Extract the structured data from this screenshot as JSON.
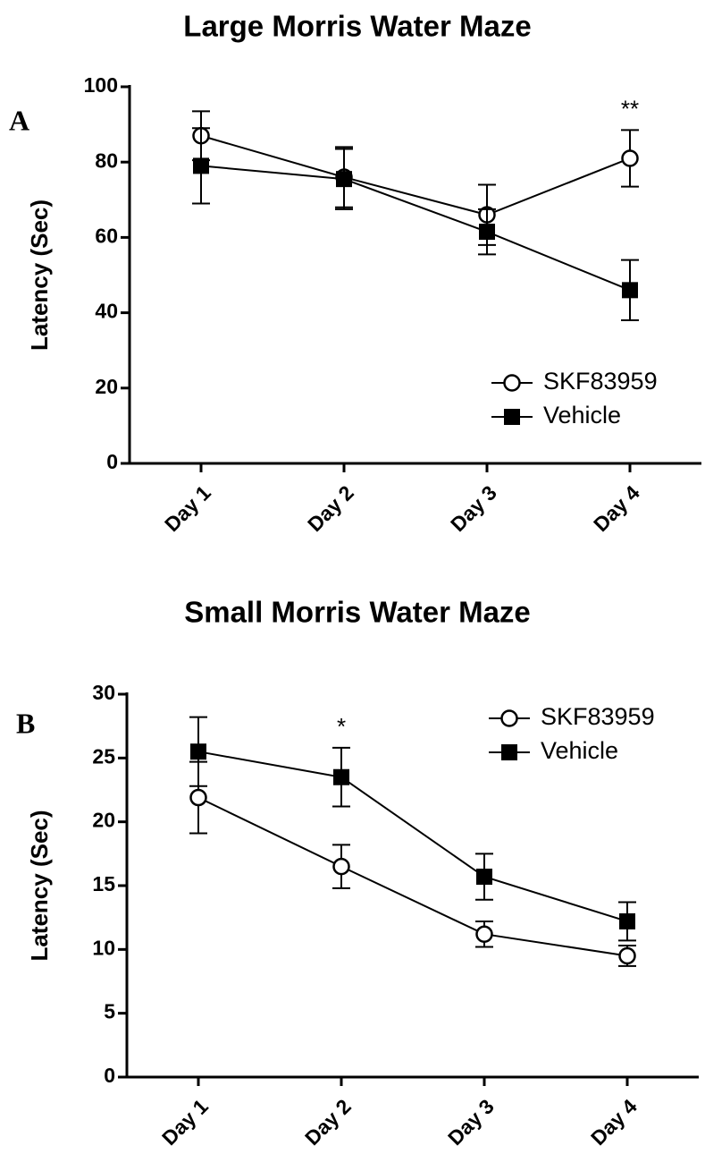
{
  "chart_data": [
    {
      "type": "line",
      "panel": "A",
      "title": "Large Morris Water Maze",
      "ylabel": "Latency (Sec)",
      "categories": [
        "Day 1",
        "Day 2",
        "Day 3",
        "Day 4"
      ],
      "ylim": [
        0,
        100
      ],
      "yticks": [
        0,
        20,
        40,
        60,
        80,
        100
      ],
      "legend": "lower right",
      "series": [
        {
          "name": "SKF83959",
          "color": "#000000",
          "marker": "circle-open",
          "values": [
            87,
            76,
            66,
            81
          ],
          "errors": [
            6.5,
            8,
            8,
            7.5
          ]
        },
        {
          "name": "Vehicle",
          "color": "#000000",
          "marker": "square",
          "values": [
            79,
            75.5,
            61.5,
            46
          ],
          "errors": [
            10,
            8,
            6,
            8
          ]
        }
      ],
      "annotations": [
        {
          "text": "**",
          "category": "Day 4"
        }
      ]
    },
    {
      "type": "line",
      "panel": "B",
      "title": "Small Morris Water Maze",
      "ylabel": "Latency (Sec)",
      "categories": [
        "Day 1",
        "Day 2",
        "Day 3",
        "Day 4"
      ],
      "ylim": [
        0,
        30
      ],
      "yticks": [
        0,
        5,
        10,
        15,
        20,
        25,
        30
      ],
      "legend": "upper right",
      "series": [
        {
          "name": "SKF83959",
          "color": "#000000",
          "marker": "circle-open",
          "values": [
            21.9,
            16.5,
            11.2,
            9.5
          ],
          "errors": [
            2.8,
            1.7,
            1,
            0.8
          ]
        },
        {
          "name": "Vehicle",
          "color": "#000000",
          "marker": "square",
          "values": [
            25.5,
            23.5,
            15.7,
            12.2
          ],
          "errors": [
            2.7,
            2.3,
            1.8,
            1.5
          ]
        }
      ],
      "annotations": [
        {
          "text": "*",
          "category": "Day 2"
        }
      ]
    }
  ]
}
